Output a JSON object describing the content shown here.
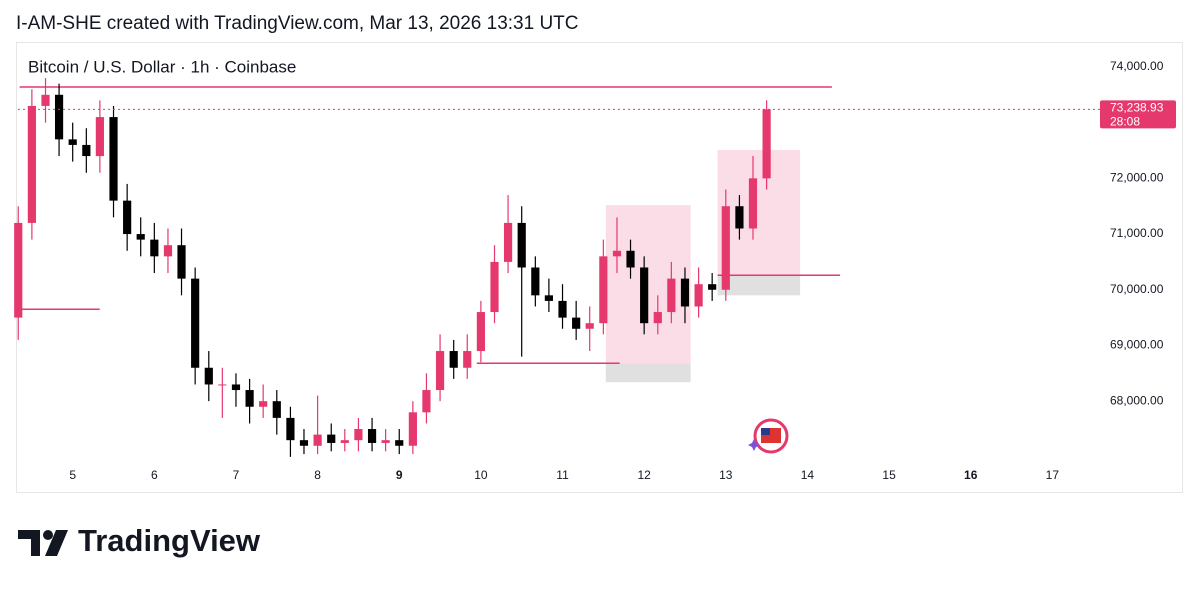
{
  "header": "I-AM-SHE created with TradingView.com, Mar 13, 2026 13:31 UTC",
  "logo": "TradingView",
  "chart_data": {
    "type": "candlestick",
    "title": "Bitcoin / U.S. Dollar · 1h · Coinbase",
    "up_color": "#e5386d",
    "down_color": "#000000",
    "x": [
      4.333,
      4.5,
      4.667,
      4.833,
      5,
      5.167,
      5.333,
      5.5,
      5.667,
      5.833,
      6,
      6.167,
      6.333,
      6.5,
      6.667,
      6.833,
      7,
      7.167,
      7.333,
      7.5,
      7.667,
      7.833,
      8,
      8.167,
      8.333,
      8.5,
      8.667,
      8.833,
      9,
      9.167,
      9.333,
      9.5,
      9.667,
      9.833,
      10,
      10.167,
      10.333,
      10.5,
      10.667,
      10.833,
      11,
      11.167,
      11.333,
      11.5,
      11.667,
      11.833,
      12,
      12.167,
      12.333,
      12.5,
      12.667,
      12.833,
      13,
      13.167,
      13.333,
      13.5
    ],
    "open": [
      69500,
      71200,
      73300,
      73500,
      72700,
      72600,
      72400,
      73100,
      71600,
      71000,
      70900,
      70600,
      70800,
      70200,
      68600,
      68300,
      68300,
      68200,
      67900,
      68000,
      67700,
      67300,
      67200,
      67400,
      67250,
      67300,
      67500,
      67250,
      67300,
      67200,
      67800,
      68200,
      68900,
      68600,
      68900,
      69600,
      70500,
      71200,
      70400,
      69900,
      69800,
      69500,
      69300,
      69400,
      70600,
      70700,
      70400,
      69400,
      69600,
      70200,
      69700,
      70100,
      70000,
      71500,
      71100,
      72000
    ],
    "high": [
      71500,
      73600,
      73800,
      73700,
      73000,
      72900,
      73400,
      73300,
      71900,
      71300,
      71200,
      71100,
      71100,
      70400,
      68900,
      68600,
      68500,
      68400,
      68300,
      68200,
      67900,
      67500,
      68100,
      67600,
      67500,
      67700,
      67700,
      67500,
      67500,
      68000,
      68500,
      69200,
      69100,
      69200,
      69800,
      70800,
      71700,
      71500,
      70600,
      70200,
      70100,
      69800,
      69700,
      70900,
      71300,
      70900,
      70600,
      69900,
      70500,
      70400,
      70400,
      70300,
      71800,
      71700,
      72400,
      73400
    ],
    "low": [
      69100,
      70900,
      73000,
      72400,
      72300,
      72100,
      72100,
      71300,
      70700,
      70600,
      70300,
      70300,
      69900,
      68300,
      68000,
      67700,
      67900,
      67600,
      67700,
      67400,
      67000,
      67050,
      67050,
      67100,
      67100,
      67100,
      67100,
      67100,
      67050,
      67050,
      67600,
      68000,
      68400,
      68400,
      68700,
      69400,
      70300,
      68800,
      69700,
      69600,
      69300,
      69100,
      68900,
      69200,
      70300,
      70200,
      69200,
      69200,
      69400,
      69400,
      69500,
      69800,
      69800,
      70900,
      70900,
      71800
    ],
    "close": [
      71200,
      73300,
      73500,
      72700,
      72600,
      72400,
      73100,
      71600,
      71000,
      70900,
      70600,
      70800,
      70200,
      68600,
      68300,
      68300,
      68200,
      67900,
      68000,
      67700,
      67300,
      67200,
      67400,
      67250,
      67300,
      67500,
      67250,
      67300,
      67200,
      67800,
      68200,
      68900,
      68600,
      68900,
      69600,
      70500,
      71200,
      70400,
      69900,
      69800,
      69500,
      69300,
      69400,
      70600,
      70700,
      70400,
      69400,
      69600,
      70200,
      69700,
      70100,
      70000,
      71500,
      71100,
      72000,
      73238.93
    ],
    "last_price": {
      "value": 73238.93,
      "label": "73,238.93"
    },
    "countdown": "28:08",
    "xlim": [
      4.33,
      17.4
    ],
    "ylim": [
      66980,
      74340
    ],
    "xticks": [
      5,
      6,
      7,
      8,
      9,
      10,
      11,
      12,
      13,
      14,
      15,
      16,
      17
    ],
    "bold_xticks": [
      9,
      16
    ],
    "yticks": [
      {
        "value": 68000,
        "label": "68,000.00"
      },
      {
        "value": 69000,
        "label": "69,000.00"
      },
      {
        "value": 70000,
        "label": "70,000.00"
      },
      {
        "value": 71000,
        "label": "71,000.00"
      },
      {
        "value": 72000,
        "label": "72,000.00"
      },
      {
        "value": 74000,
        "label": "74,000.00"
      }
    ],
    "lines": [
      {
        "price": 73640,
        "x": [
          4.35,
          14.3
        ],
        "color": "#e5386d"
      },
      {
        "price": 69650,
        "x": [
          4.33,
          5.33
        ],
        "color": "#e5386d"
      },
      {
        "price": 68680,
        "x": [
          9.95,
          11.7
        ],
        "color": "#e5386d"
      },
      {
        "price": 70260,
        "x": [
          12.9,
          14.4
        ],
        "color": "#e5386d"
      }
    ],
    "boxes": [
      {
        "top": 71520,
        "bottom": 68680,
        "x": [
          11.53,
          12.57
        ],
        "color": "#fbdde7"
      },
      {
        "top": 68680,
        "bottom": 68340,
        "x": [
          11.53,
          12.57
        ],
        "color": "#e0e0e0"
      },
      {
        "top": 72510,
        "bottom": 70260,
        "x": [
          12.9,
          13.91
        ],
        "color": "#fbdde7"
      },
      {
        "top": 70260,
        "bottom": 69900,
        "x": [
          12.9,
          13.91
        ],
        "color": "#e0e0e0"
      }
    ]
  }
}
